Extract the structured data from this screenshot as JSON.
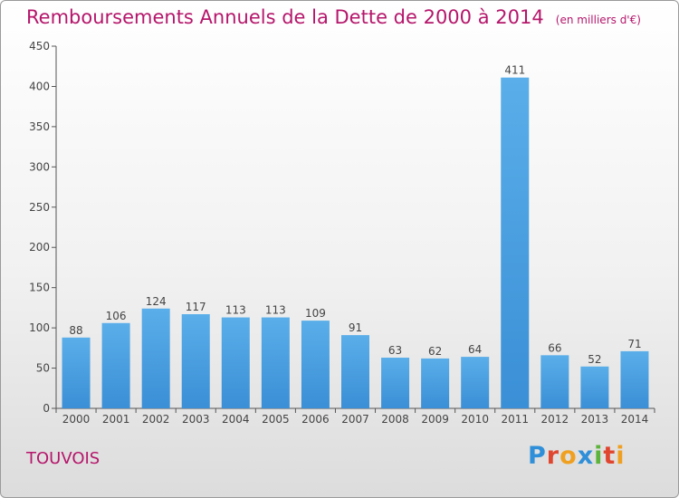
{
  "chart_data": {
    "type": "bar",
    "title": "Remboursements Annuels de la Dette de 2000 à 2014",
    "subtitle": "(en milliers d'€)",
    "xlabel": "",
    "ylabel": "",
    "categories": [
      "2000",
      "2001",
      "2002",
      "2003",
      "2004",
      "2005",
      "2006",
      "2007",
      "2008",
      "2009",
      "2010",
      "2011",
      "2012",
      "2013",
      "2014"
    ],
    "values": [
      88,
      106,
      124,
      117,
      113,
      113,
      109,
      91,
      63,
      62,
      64,
      411,
      66,
      52,
      71
    ],
    "ylim": [
      0,
      450
    ],
    "yticks": [
      0,
      50,
      100,
      150,
      200,
      250,
      300,
      350,
      400,
      450
    ],
    "grid": false,
    "legend": "none",
    "bar_color": "#3a8fd6"
  },
  "footer": {
    "commune": "TOUVOIS",
    "logo_text": "Proxiti",
    "logo_letters": [
      {
        "ch": "P",
        "color": "#2f8fd8"
      },
      {
        "ch": "r",
        "color": "#e0462f"
      },
      {
        "ch": "o",
        "color": "#f0a020"
      },
      {
        "ch": "x",
        "color": "#2f8fd8"
      },
      {
        "ch": "i",
        "color": "#5db33c"
      },
      {
        "ch": "t",
        "color": "#e0462f"
      },
      {
        "ch": "i",
        "color": "#f0a020"
      }
    ]
  },
  "colors": {
    "title": "#b5166b",
    "axis": "#555555"
  }
}
